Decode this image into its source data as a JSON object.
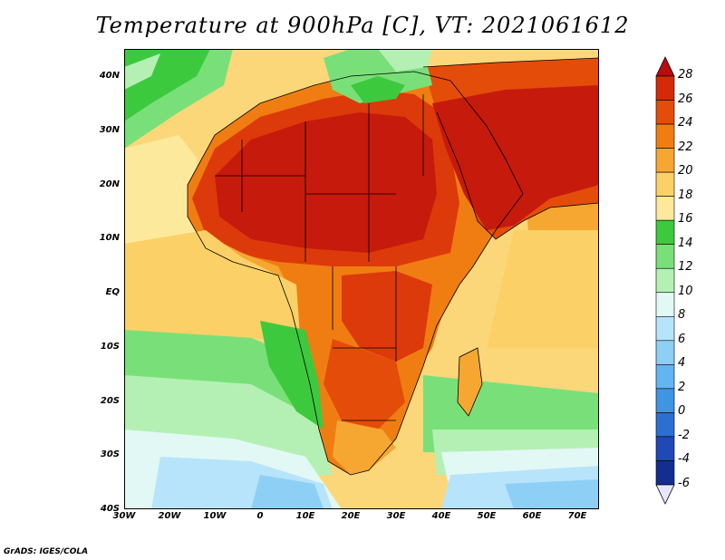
{
  "title": "Temperature at 900hPa [C], VT: 2021061612",
  "credit": "GrADS: IGES/COLA",
  "y_axis_labels": [
    "40N",
    "30N",
    "20N",
    "10N",
    "EQ",
    "10S",
    "20S",
    "30S",
    "40S"
  ],
  "x_axis_labels": [
    "30W",
    "20W",
    "10W",
    "0",
    "10E",
    "20E",
    "30E",
    "40E",
    "50E",
    "60E",
    "70E"
  ],
  "colorbar": {
    "labels": [
      "28",
      "26",
      "24",
      "22",
      "20",
      "18",
      "16",
      "14",
      "12",
      "10",
      "8",
      "6",
      "4",
      "2",
      "0",
      "-2",
      "-4",
      "-6"
    ],
    "colors": [
      "#b80d0d",
      "#d42a0a",
      "#e44c0a",
      "#f07d12",
      "#f5a732",
      "#fbd167",
      "#fde99c",
      "#3dc93d",
      "#79e079",
      "#b4f0b4",
      "#e2f8f5",
      "#b7e4fa",
      "#8ecff6",
      "#62b5f0",
      "#3f95e2",
      "#2b6fd0",
      "#1f49b5",
      "#142e90",
      "#0b1a68"
    ],
    "under_color": "#e6e6ff"
  },
  "map": {
    "lon_range": [
      -30,
      75
    ],
    "lat_range": [
      -40,
      45
    ],
    "colors": {
      "hot_core": "#c61a0c",
      "hot": "#dd3a0b",
      "warm": "#ef7a14",
      "mid": "#f5a732",
      "cool_land": "#fbd167",
      "ocean_trop": "#fbd77a",
      "ocean_yellow": "#fde99c",
      "green": "#3dc93d",
      "light_green": "#79e079",
      "pale_green": "#b4f0b4",
      "cyan": "#e2f8f5",
      "light_blue": "#b7e4fa",
      "blue": "#8ecff6",
      "deep_blue": "#62b5f0"
    }
  }
}
